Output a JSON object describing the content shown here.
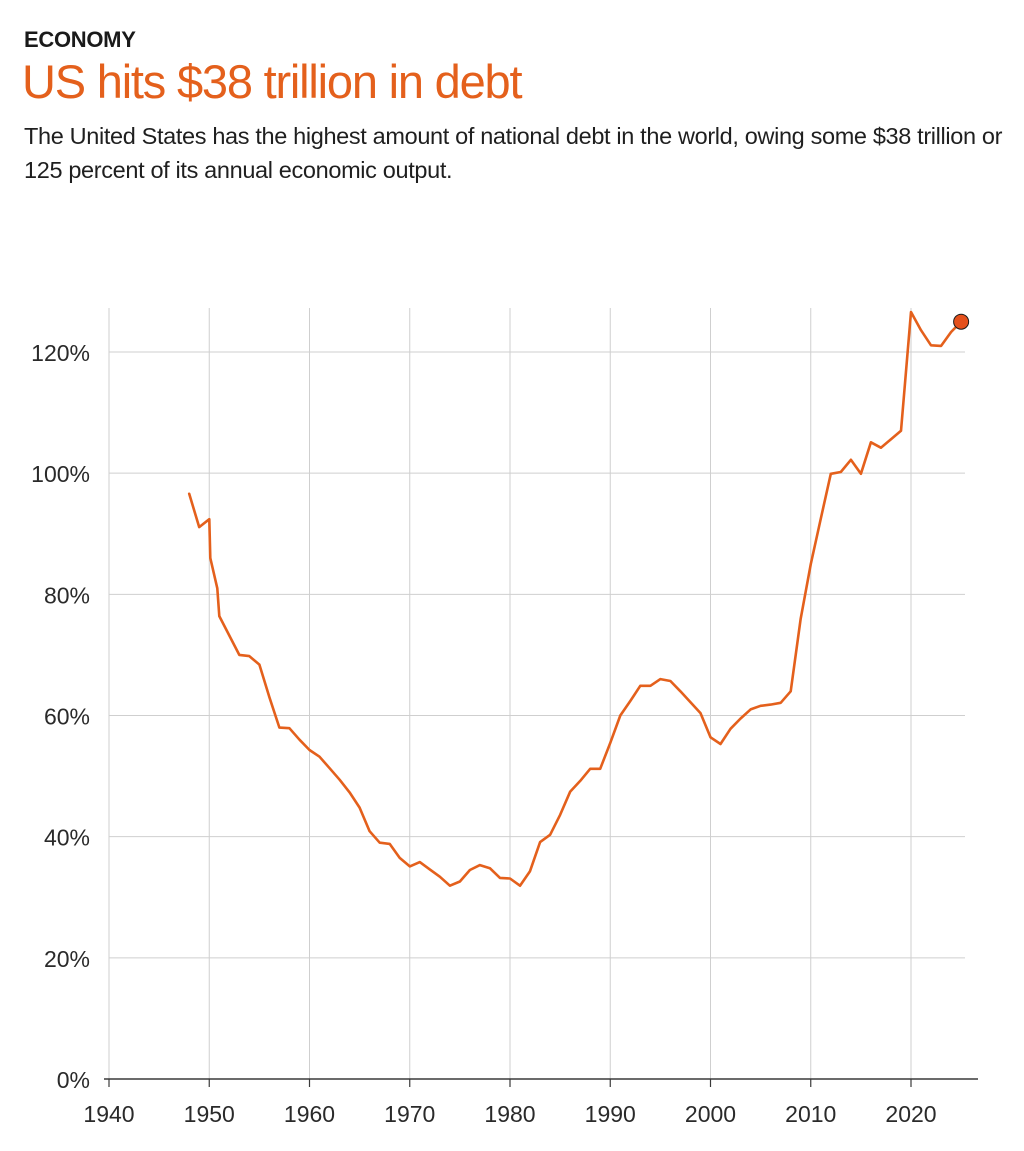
{
  "header": {
    "kicker": "ECONOMY",
    "title": "US hits $38 trillion in debt",
    "subtitle": "The United States has the highest amount of national debt in the world, owing some $38 trillion or 125 percent of its annual economic output."
  },
  "colors": {
    "accent": "#e4601c",
    "grid": "#cfcfcf",
    "axis": "#3a3a3a"
  },
  "chart_data": {
    "type": "line",
    "title": "US hits $38 trillion in debt",
    "xlabel": "",
    "ylabel": "",
    "xlim": [
      1940,
      2026
    ],
    "ylim": [
      0,
      126
    ],
    "grid": true,
    "legend": "none",
    "x_ticks": [
      1940,
      1950,
      1960,
      1970,
      1980,
      1990,
      2000,
      2010,
      2020
    ],
    "y_ticks": [
      0,
      20,
      40,
      60,
      80,
      100,
      120
    ],
    "y_tick_labels": [
      "0%",
      "20%",
      "40%",
      "60%",
      "80%",
      "100%",
      "120%"
    ],
    "series": [
      {
        "values": [
          [
            1948,
            96.6
          ],
          [
            1949,
            91.1
          ],
          [
            1950,
            92.4
          ],
          [
            1950.1,
            86.0
          ],
          [
            1950.8,
            81.0
          ],
          [
            1951,
            76.4
          ],
          [
            1952,
            73.2
          ],
          [
            1953,
            70.0
          ],
          [
            1954,
            69.8
          ],
          [
            1955,
            68.4
          ],
          [
            1956,
            63.0
          ],
          [
            1957,
            58.0
          ],
          [
            1958,
            57.9
          ],
          [
            1959,
            56.0
          ],
          [
            1960,
            54.3
          ],
          [
            1961,
            53.2
          ],
          [
            1962,
            51.3
          ],
          [
            1963,
            49.4
          ],
          [
            1964,
            47.3
          ],
          [
            1965,
            44.8
          ],
          [
            1966,
            40.9
          ],
          [
            1967,
            39.0
          ],
          [
            1968,
            38.8
          ],
          [
            1969,
            36.5
          ],
          [
            1970,
            35.1
          ],
          [
            1971,
            35.8
          ],
          [
            1972,
            34.6
          ],
          [
            1973,
            33.4
          ],
          [
            1974,
            31.9
          ],
          [
            1975,
            32.6
          ],
          [
            1976,
            34.5
          ],
          [
            1977,
            35.3
          ],
          [
            1978,
            34.8
          ],
          [
            1979,
            33.2
          ],
          [
            1980,
            33.1
          ],
          [
            1981,
            31.9
          ],
          [
            1982,
            34.3
          ],
          [
            1983,
            39.1
          ],
          [
            1984,
            40.3
          ],
          [
            1985,
            43.6
          ],
          [
            1986,
            47.4
          ],
          [
            1987,
            49.2
          ],
          [
            1988,
            51.2
          ],
          [
            1989,
            51.2
          ],
          [
            1990,
            55.5
          ],
          [
            1991,
            60.0
          ],
          [
            1992,
            62.4
          ],
          [
            1993,
            64.9
          ],
          [
            1994,
            64.9
          ],
          [
            1995,
            66.0
          ],
          [
            1996,
            65.7
          ],
          [
            1997,
            64.0
          ],
          [
            1998,
            62.2
          ],
          [
            1999,
            60.4
          ],
          [
            2000,
            56.4
          ],
          [
            2001,
            55.3
          ],
          [
            2002,
            57.8
          ],
          [
            2003,
            59.5
          ],
          [
            2004,
            61.0
          ],
          [
            2005,
            61.6
          ],
          [
            2006,
            61.8
          ],
          [
            2007,
            62.1
          ],
          [
            2008,
            64.0
          ],
          [
            2008.5,
            70.0
          ],
          [
            2009,
            76.0
          ],
          [
            2010,
            85.0
          ],
          [
            2011,
            92.5
          ],
          [
            2012,
            99.9
          ],
          [
            2013,
            100.2
          ],
          [
            2014,
            102.2
          ],
          [
            2015,
            99.9
          ],
          [
            2016,
            105.1
          ],
          [
            2017,
            104.2
          ],
          [
            2018,
            105.6
          ],
          [
            2019,
            107.0
          ],
          [
            2020,
            126.6
          ],
          [
            2021,
            123.6
          ],
          [
            2022,
            121.1
          ],
          [
            2023,
            121.0
          ],
          [
            2024,
            123.3
          ],
          [
            2025,
            125.0
          ]
        ]
      }
    ],
    "highlight_point": [
      2025,
      125.0
    ]
  }
}
